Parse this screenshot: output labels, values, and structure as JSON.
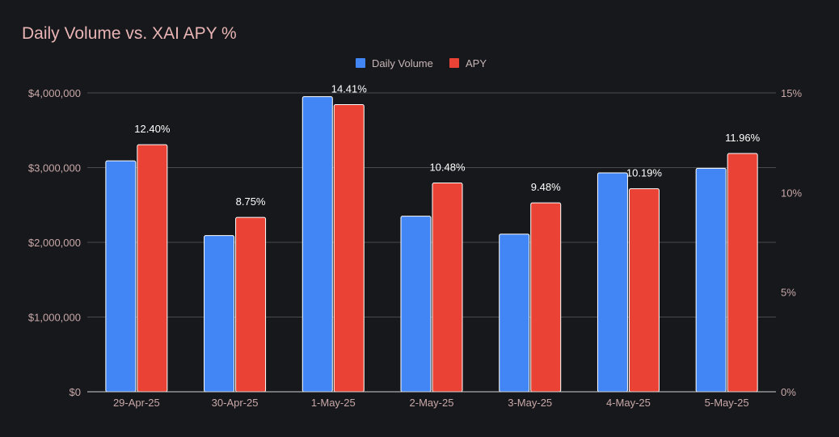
{
  "chart_data": {
    "type": "bar",
    "title": "Daily Volume vs. XAI APY %",
    "categories": [
      "29-Apr-25",
      "30-Apr-25",
      "1-May-25",
      "2-May-25",
      "3-May-25",
      "4-May-25",
      "5-May-25"
    ],
    "series": [
      {
        "name": "Daily Volume",
        "axis": "left",
        "color": "#4285f4",
        "values": [
          3090000,
          2090000,
          3950000,
          2350000,
          2110000,
          2930000,
          2990000
        ]
      },
      {
        "name": "APY",
        "axis": "right",
        "color": "#ea4335",
        "values": [
          12.4,
          8.75,
          14.41,
          10.48,
          9.48,
          10.19,
          11.96
        ],
        "data_labels": [
          "12.40%",
          "8.75%",
          "14.41%",
          "10.48%",
          "9.48%",
          "10.19%",
          "11.96%"
        ]
      }
    ],
    "y_left": {
      "ylim": [
        0,
        4000000
      ],
      "ticks": [
        0,
        1000000,
        2000000,
        3000000,
        4000000
      ],
      "tick_labels": [
        "$0",
        "$1,000,000",
        "$2,000,000",
        "$3,000,000",
        "$4,000,000"
      ]
    },
    "y_right": {
      "ylim": [
        0,
        15
      ],
      "ticks": [
        0,
        5,
        10,
        15
      ],
      "tick_labels": [
        "0%",
        "5%",
        "10%",
        "15%"
      ]
    },
    "grid": true,
    "legend": "top-center",
    "colors": {
      "background": "#17181c",
      "title": "#e8b4b4",
      "axis_text": "#c8a8a8",
      "grid": "#4a4a4e"
    }
  }
}
